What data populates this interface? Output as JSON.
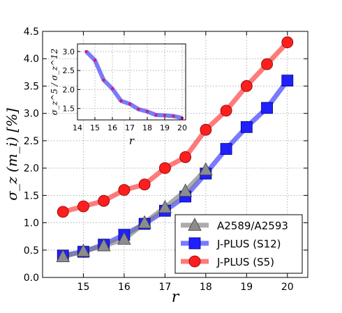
{
  "chart_data": [
    {
      "type": "line",
      "xlabel": "r",
      "ylabel": "σ_z (m_i) [%]",
      "xlim": [
        14.0,
        20.5
      ],
      "ylim": [
        0.0,
        4.5
      ],
      "xticks": [
        15,
        16,
        17,
        18,
        19,
        20
      ],
      "yticks": [
        0.0,
        0.5,
        1.0,
        1.5,
        2.0,
        2.5,
        3.0,
        3.5,
        4.0,
        4.5
      ],
      "xtick_labels": [
        "15",
        "16",
        "17",
        "18",
        "19",
        "20"
      ],
      "ytick_labels": [
        "0.0",
        "0.5",
        "1.0",
        "1.5",
        "2.0",
        "2.5",
        "3.0",
        "3.5",
        "4.0",
        "4.5"
      ],
      "grid": true,
      "legend_position": "bottom-right",
      "series": [
        {
          "name": "A2589/A2593",
          "color": "#808080",
          "marker": "triangle",
          "x": [
            14.5,
            15.0,
            15.5,
            16.0,
            16.5,
            17.0,
            17.5,
            18.0
          ],
          "y": [
            0.38,
            0.48,
            0.58,
            0.7,
            1.0,
            1.28,
            1.58,
            1.97
          ]
        },
        {
          "name": "J-PLUS (S12)",
          "color": "#0000ff",
          "marker": "square",
          "x": [
            14.5,
            15.0,
            15.5,
            16.0,
            16.5,
            17.0,
            17.5,
            18.0,
            18.5,
            19.0,
            19.5,
            20.0
          ],
          "y": [
            0.4,
            0.47,
            0.6,
            0.78,
            0.98,
            1.22,
            1.48,
            1.9,
            2.35,
            2.75,
            3.1,
            3.6
          ]
        },
        {
          "name": "J-PLUS  (S5)",
          "color": "#ff0000",
          "marker": "circle",
          "x": [
            14.5,
            15.0,
            15.5,
            16.0,
            16.5,
            17.0,
            17.5,
            18.0,
            18.5,
            19.0,
            19.5,
            20.0
          ],
          "y": [
            1.2,
            1.3,
            1.4,
            1.6,
            1.7,
            2.0,
            2.2,
            2.7,
            3.05,
            3.5,
            3.9,
            4.3
          ]
        }
      ]
    },
    {
      "type": "line",
      "xlabel": "r",
      "ylabel": "σ_z^5 / σ_z^12",
      "xlim": [
        14.0,
        20.2
      ],
      "ylim": [
        1.2,
        3.2
      ],
      "xticks": [
        14,
        15,
        16,
        17,
        18,
        19,
        20
      ],
      "yticks": [
        1.5,
        2.0,
        2.5,
        3.0
      ],
      "xtick_labels": [
        "14",
        "15",
        "16",
        "17",
        "18",
        "19",
        "20"
      ],
      "ytick_labels": [
        "1.5",
        "2.0",
        "2.5",
        "3.0"
      ],
      "grid": true,
      "series": [
        {
          "color": "#4d4dff",
          "marker": "dot",
          "marker_color": "#d02060",
          "x": [
            14.5,
            15.0,
            15.5,
            16.0,
            16.5,
            17.0,
            17.5,
            18.0,
            18.5,
            19.0,
            19.5,
            20.0
          ],
          "y": [
            3.0,
            2.77,
            2.25,
            2.02,
            1.7,
            1.62,
            1.48,
            1.42,
            1.33,
            1.32,
            1.3,
            1.25
          ]
        }
      ]
    }
  ]
}
